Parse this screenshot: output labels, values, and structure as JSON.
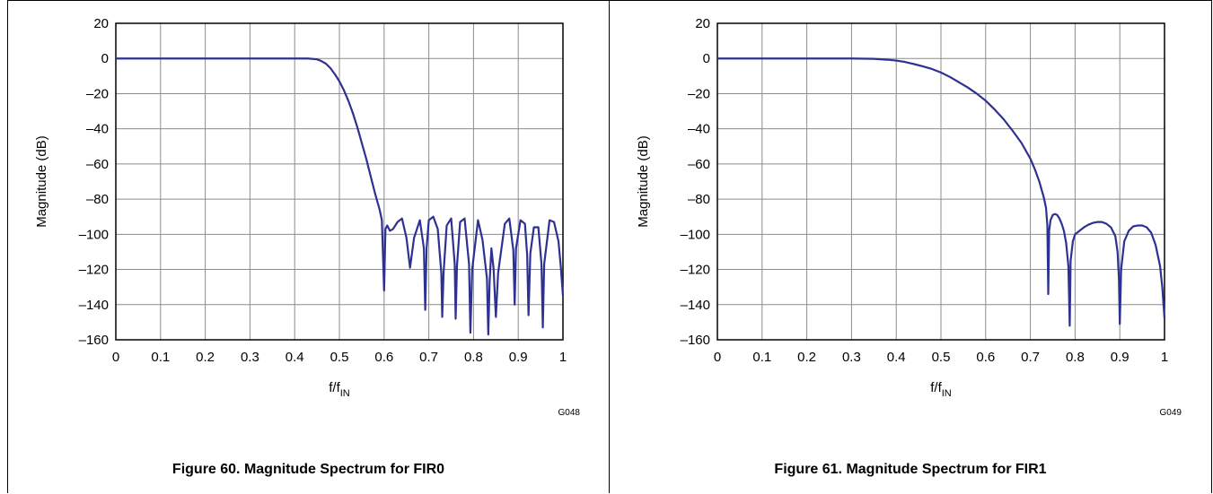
{
  "chart_data": [
    {
      "type": "line",
      "xlabel": {
        "main": "f/f",
        "sub": "IN"
      },
      "ylabel": "Magnitude (dB)",
      "xlim": [
        0,
        1
      ],
      "ylim": [
        -160,
        20
      ],
      "x_ticks": [
        "0",
        "0.1",
        "0.2",
        "0.3",
        "0.4",
        "0.5",
        "0.6",
        "0.7",
        "0.8",
        "0.9",
        "1"
      ],
      "y_ticks": [
        "20",
        "0",
        "–20",
        "–40",
        "–60",
        "–80",
        "–100",
        "–120",
        "–140",
        "–160"
      ],
      "grid": true,
      "figure_code": "G048",
      "caption": "Figure 60. Magnitude Spectrum for FIR0",
      "series_color": "#2e3192",
      "x": [
        0,
        0.1,
        0.2,
        0.3,
        0.4,
        0.43,
        0.45,
        0.46,
        0.47,
        0.48,
        0.49,
        0.5,
        0.51,
        0.52,
        0.53,
        0.54,
        0.55,
        0.56,
        0.57,
        0.58,
        0.59,
        0.595,
        0.6,
        0.603,
        0.607,
        0.613,
        0.62,
        0.63,
        0.64,
        0.65,
        0.658,
        0.667,
        0.68,
        0.689,
        0.692,
        0.695,
        0.7,
        0.71,
        0.72,
        0.728,
        0.73,
        0.733,
        0.74,
        0.75,
        0.758,
        0.76,
        0.763,
        0.77,
        0.78,
        0.79,
        0.793,
        0.797,
        0.81,
        0.82,
        0.83,
        0.833,
        0.836,
        0.84,
        0.845,
        0.85,
        0.855,
        0.87,
        0.88,
        0.889,
        0.892,
        0.895,
        0.905,
        0.915,
        0.92,
        0.923,
        0.927,
        0.935,
        0.945,
        0.952,
        0.955,
        0.958,
        0.97,
        0.98,
        0.99,
        0.995,
        1.0
      ],
      "y": [
        0,
        0,
        0,
        0,
        0,
        0,
        -0.5,
        -1.5,
        -3,
        -5.5,
        -9,
        -13,
        -18,
        -24,
        -31,
        -39,
        -48,
        -57,
        -67,
        -77,
        -86,
        -92,
        -132,
        -97,
        -95,
        -98,
        -97,
        -93,
        -91,
        -102,
        -119,
        -102,
        -92,
        -108,
        -143,
        -108,
        -92,
        -90,
        -97,
        -122,
        -147,
        -122,
        -95,
        -91,
        -117,
        -148,
        -118,
        -93,
        -91,
        -117,
        -156,
        -120,
        -92,
        -103,
        -125,
        -157,
        -127,
        -108,
        -120,
        -147,
        -122,
        -94,
        -91,
        -109,
        -140,
        -108,
        -92,
        -94,
        -112,
        -146,
        -111,
        -96,
        -96,
        -117,
        -153,
        -117,
        -92,
        -93,
        -104,
        -118,
        -135
      ]
    },
    {
      "type": "line",
      "xlabel": {
        "main": "f/f",
        "sub": "IN"
      },
      "ylabel": "Magnitude (dB)",
      "xlim": [
        0,
        1
      ],
      "ylim": [
        -160,
        20
      ],
      "x_ticks": [
        "0",
        "0.1",
        "0.2",
        "0.3",
        "0.4",
        "0.5",
        "0.6",
        "0.7",
        "0.8",
        "0.9",
        "1"
      ],
      "y_ticks": [
        "20",
        "0",
        "–20",
        "–40",
        "–60",
        "–80",
        "–100",
        "–120",
        "–140",
        "–160"
      ],
      "grid": true,
      "figure_code": "G049",
      "caption": "Figure 61. Magnitude Spectrum for FIR1",
      "series_color": "#2e3192",
      "x": [
        0,
        0.1,
        0.2,
        0.3,
        0.35,
        0.38,
        0.4,
        0.42,
        0.44,
        0.46,
        0.48,
        0.5,
        0.52,
        0.54,
        0.56,
        0.58,
        0.6,
        0.62,
        0.64,
        0.66,
        0.68,
        0.7,
        0.71,
        0.72,
        0.73,
        0.735,
        0.738,
        0.74,
        0.742,
        0.745,
        0.75,
        0.755,
        0.76,
        0.765,
        0.77,
        0.775,
        0.78,
        0.785,
        0.788,
        0.79,
        0.795,
        0.8,
        0.81,
        0.82,
        0.83,
        0.84,
        0.85,
        0.86,
        0.87,
        0.88,
        0.89,
        0.895,
        0.898,
        0.9,
        0.903,
        0.91,
        0.92,
        0.93,
        0.94,
        0.95,
        0.96,
        0.97,
        0.98,
        0.99,
        0.995,
        1.0
      ],
      "y": [
        0,
        0,
        0,
        0,
        -0.2,
        -0.7,
        -1.2,
        -2,
        -3.2,
        -4.5,
        -6,
        -8,
        -10.5,
        -13.5,
        -16.5,
        -20,
        -24,
        -29,
        -34.5,
        -41,
        -48,
        -57,
        -63,
        -70,
        -79,
        -85,
        -95,
        -134,
        -98,
        -92,
        -89,
        -88.5,
        -89,
        -91,
        -94,
        -98,
        -105,
        -118,
        -152,
        -115,
        -104,
        -100,
        -98,
        -96,
        -94.5,
        -93.5,
        -93,
        -93,
        -94,
        -96,
        -101,
        -110,
        -125,
        -151,
        -120,
        -104,
        -98,
        -95.5,
        -95,
        -95,
        -96,
        -99,
        -106,
        -118,
        -130,
        -148
      ]
    }
  ]
}
